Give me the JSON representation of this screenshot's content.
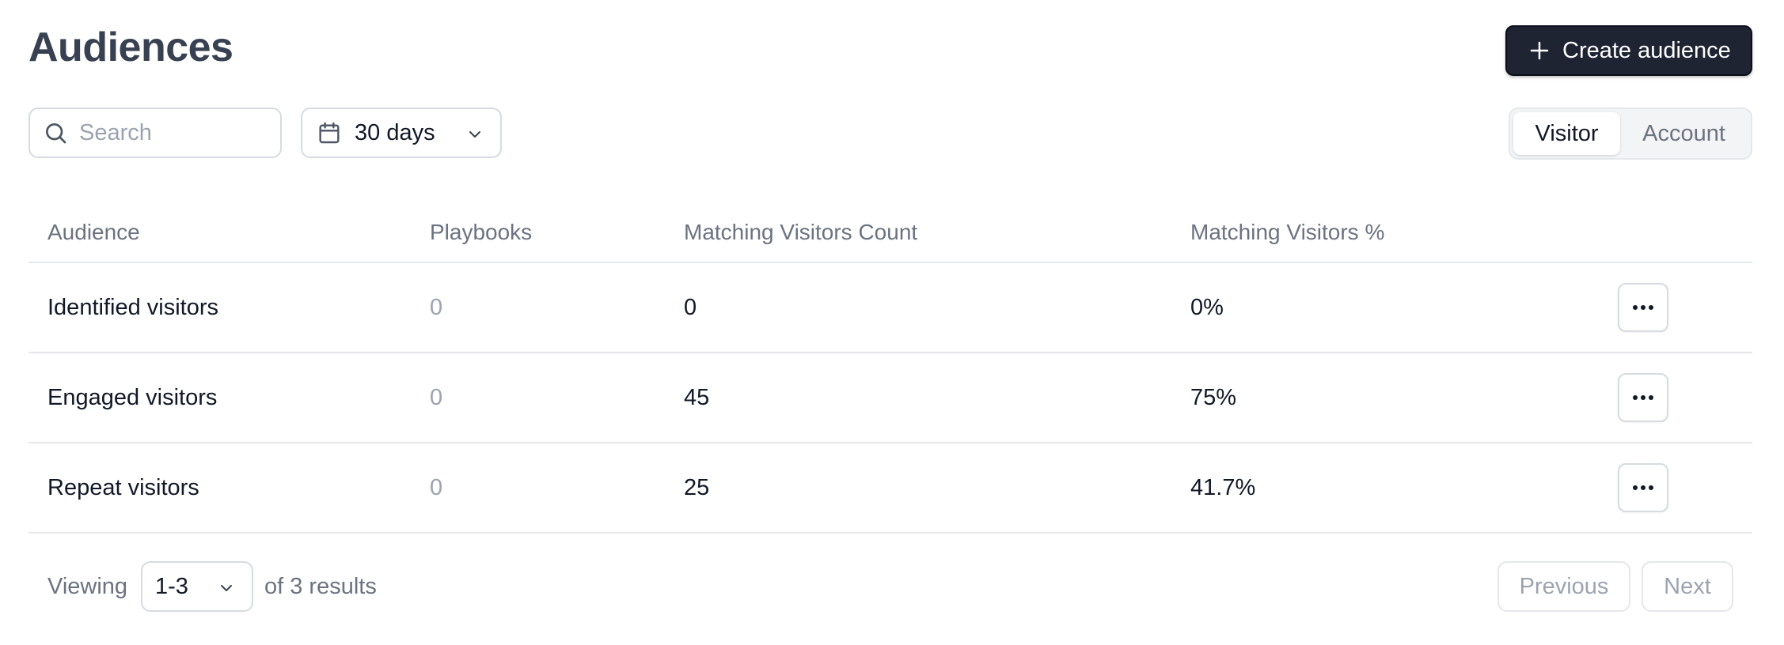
{
  "page": {
    "title": "Audiences"
  },
  "toolbar": {
    "create_label": "Create audience",
    "search_placeholder": "Search",
    "search_value": "",
    "range_label": "30 days",
    "toggle": {
      "visitor_label": "Visitor",
      "account_label": "Account",
      "selected": "Visitor"
    }
  },
  "table": {
    "headers": {
      "audience": "Audience",
      "playbooks": "Playbooks",
      "count": "Matching Visitors Count",
      "percent": "Matching Visitors %"
    },
    "rows": [
      {
        "name": "Identified visitors",
        "playbooks": "0",
        "count": "0",
        "percent": "0%"
      },
      {
        "name": "Engaged visitors",
        "playbooks": "0",
        "count": "45",
        "percent": "75%"
      },
      {
        "name": "Repeat visitors",
        "playbooks": "0",
        "count": "25",
        "percent": "41.7%"
      }
    ]
  },
  "pagination": {
    "viewing_label": "Viewing",
    "range_value": "1-3",
    "results_label": "of 3 results",
    "previous_label": "Previous",
    "next_label": "Next"
  },
  "colors": {
    "primary_button": "#1f2433",
    "border": "#d7dbe0",
    "muted_text": "#6b7280",
    "disabled_text": "#9ca3af"
  },
  "icons": {
    "create": "plus-icon",
    "search": "search-icon",
    "range": "calendar-icon",
    "dropdown": "chevron-down-icon",
    "row_actions": "more-horizontal-icon"
  }
}
